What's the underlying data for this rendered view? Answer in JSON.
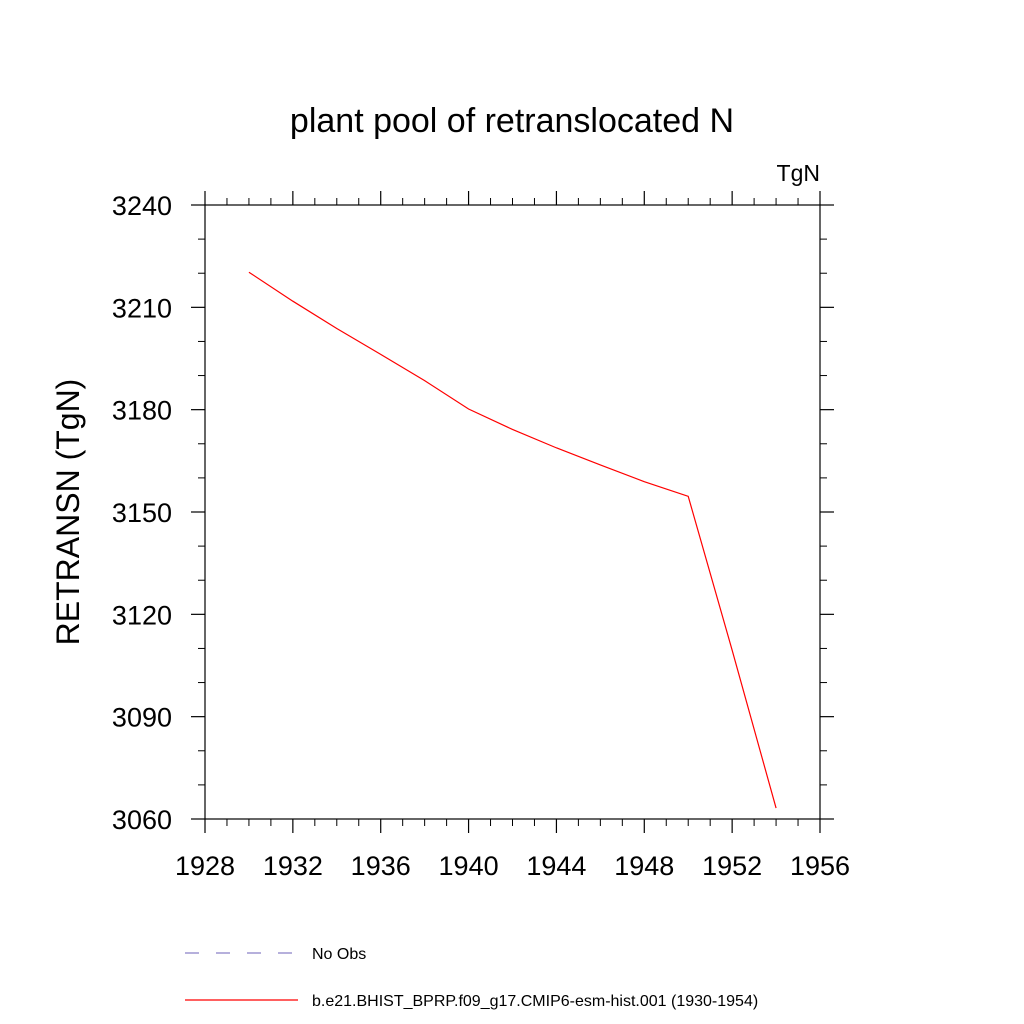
{
  "chart_data": {
    "type": "line",
    "title": "plant pool of retranslocated N",
    "units_label": "TgN",
    "ylabel": "RETRANSN  (TgN)",
    "xlabel": "",
    "xlim": [
      1928,
      1956
    ],
    "ylim": [
      3060,
      3240
    ],
    "x_major_ticks": [
      1928,
      1932,
      1936,
      1940,
      1944,
      1948,
      1952,
      1956
    ],
    "x_tick_labels": [
      "1928",
      "1932",
      "1936",
      "1940",
      "1944",
      "1948",
      "1952",
      "1956"
    ],
    "x_minor_step": 1,
    "y_major_ticks": [
      3060,
      3090,
      3120,
      3150,
      3180,
      3210,
      3240
    ],
    "y_tick_labels": [
      "3060",
      "3090",
      "3120",
      "3150",
      "3180",
      "3210",
      "3240"
    ],
    "y_minor_step": 10,
    "grid": false,
    "legend_position": "bottom",
    "series": [
      {
        "name": "b.e21.BHIST_BPRP.f09_g17.CMIP6-esm-hist.001 (1930-1954)",
        "color": "#ff0000",
        "dash": "solid",
        "x": [
          1930,
          1932,
          1934,
          1936,
          1938,
          1940,
          1942,
          1944,
          1946,
          1948,
          1950,
          1952,
          1954
        ],
        "y": [
          3220.3,
          3211.8,
          3203.8,
          3196.2,
          3188.5,
          3180.2,
          3174.2,
          3168.8,
          3163.8,
          3158.9,
          3154.6,
          3109.5,
          3063.2
        ]
      }
    ],
    "legend": [
      {
        "label": "No Obs",
        "color": "#8a80c8",
        "dash": "dashed"
      },
      {
        "label": "b.e21.BHIST_BPRP.f09_g17.CMIP6-esm-hist.001 (1930-1954)",
        "color": "#ff0000",
        "dash": "solid"
      }
    ]
  }
}
